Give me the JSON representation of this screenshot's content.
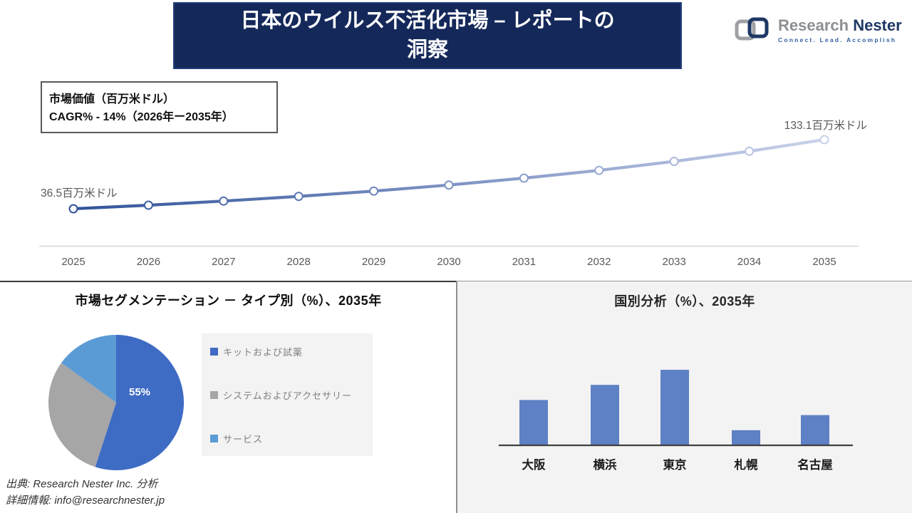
{
  "header": {
    "title_line1": "日本のウイルス不活化市場 – レポートの",
    "title_line2": "洞察",
    "bar_color": "#14285A",
    "logo": {
      "name_part1": "Research",
      "name_part2": "Nester",
      "tagline": "Connect. Lead. Accomplish"
    }
  },
  "info_box": {
    "line1": "市場価値（百万米ドル）",
    "line2": "CAGR% - 14%（2026年ー2035年）"
  },
  "chart_data": [
    {
      "type": "line",
      "title": "市場価値（百万米ドル）",
      "x": [
        "2025",
        "2026",
        "2027",
        "2028",
        "2029",
        "2030",
        "2031",
        "2032",
        "2033",
        "2034",
        "2035"
      ],
      "values": [
        36.5,
        41.5,
        47.3,
        53.8,
        61.2,
        69.7,
        79.3,
        90.2,
        102.7,
        116.9,
        133.1
      ],
      "start_label": "36.5百万米ドル",
      "end_label": "133.1百万米ドル",
      "cagr_note": "CAGR% - 14%（2026年ー2035年）",
      "ylim": [
        30,
        140
      ],
      "grid": false,
      "line_color_start": "#31539B",
      "line_color_end": "#C9D2EA",
      "marker_fill": "#ffffff",
      "axis_color": "#D8D8D8",
      "tick_color": "#595959"
    },
    {
      "type": "pie",
      "title": "市場セグメンテーション － タイプ別（%）、2035年",
      "labels": [
        "キットおよび試薬",
        "システムおよびアクセサリー",
        "サービス"
      ],
      "values": [
        55,
        30,
        15
      ],
      "colors": [
        "#3E6BC4",
        "#A6A6A6",
        "#5B9BD5"
      ],
      "shown_label": "55%",
      "legend_position": "right"
    },
    {
      "type": "bar",
      "title": "国別分析（%）、2035年",
      "categories": [
        "大阪",
        "横浜",
        "東京",
        "札幌",
        "名古屋"
      ],
      "values": [
        30,
        40,
        50,
        10,
        20
      ],
      "bar_color": "#5E80C4",
      "axis_color": "#404040",
      "ylim": [
        0,
        55
      ],
      "grid": false
    }
  ],
  "footer": {
    "line1": "出典: Research Nester Inc. 分析",
    "line2": "詳細情報: info@researchnester.jp"
  }
}
